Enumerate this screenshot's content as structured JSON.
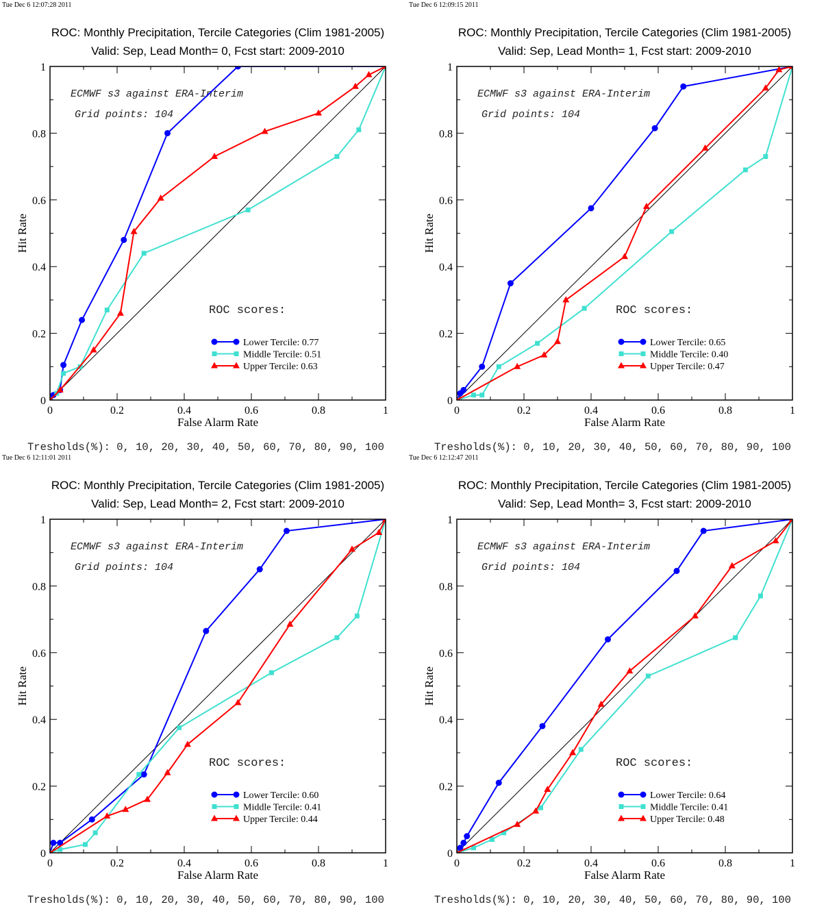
{
  "chart_data": [
    {
      "type": "line",
      "timestamp": "Tue Dec  6 12:07:28 2011",
      "title": "ROC: Monthly Precipitation, Tercile Categories (Clim 1981-2005)",
      "subtitle": "Valid: Sep, Lead Month= 0, Fcst start: 2009-2010",
      "xlabel": "False Alarm Rate",
      "ylabel": "Hit Rate",
      "xlim": [
        0,
        1
      ],
      "ylim": [
        0,
        1
      ],
      "x_ticks": [
        "0",
        "0.2",
        "0.4",
        "0.6",
        "0.8",
        "1"
      ],
      "y_ticks": [
        "0",
        "0.2",
        "0.4",
        "0.6",
        "0.8",
        "1"
      ],
      "annotation_line1": "ECMWF s3 against ERA-Interim",
      "annotation_line2": "Grid points:  104",
      "scores_heading": "ROC scores:",
      "thresholds": "Tresholds(%): 0, 10, 20, 30, 40, 50, 60, 70, 80, 90, 100",
      "series": [
        {
          "name": "Lower Tercile: 0.77",
          "color": "#0000ff",
          "marker": "circle",
          "x": [
            0,
            0.01,
            0.03,
            0.04,
            0.095,
            0.22,
            0.35,
            0.56,
            1
          ],
          "y": [
            0,
            0.015,
            0.03,
            0.105,
            0.24,
            0.48,
            0.8,
            1,
            1
          ]
        },
        {
          "name": "Middle Tercile: 0.51",
          "color": "#40e0d0",
          "marker": "square",
          "x": [
            0,
            0.02,
            0.04,
            0.09,
            0.17,
            0.28,
            0.59,
            0.855,
            0.92,
            1
          ],
          "y": [
            0,
            0.02,
            0.08,
            0.1,
            0.27,
            0.44,
            0.57,
            0.73,
            0.81,
            1
          ]
        },
        {
          "name": "Upper Tercile: 0.63",
          "color": "#ff0000",
          "marker": "triangle",
          "x": [
            0,
            0.03,
            0.13,
            0.21,
            0.25,
            0.33,
            0.49,
            0.64,
            0.8,
            0.91,
            0.95,
            1
          ],
          "y": [
            0,
            0.03,
            0.15,
            0.26,
            0.505,
            0.605,
            0.73,
            0.805,
            0.86,
            0.94,
            0.975,
            1
          ]
        }
      ]
    },
    {
      "type": "line",
      "timestamp": "Tue Dec  6 12:09:15 2011",
      "title": "ROC: Monthly Precipitation, Tercile Categories (Clim 1981-2005)",
      "subtitle": "Valid: Sep, Lead Month= 1, Fcst start: 2009-2010",
      "xlabel": "False Alarm Rate",
      "ylabel": "Hit Rate",
      "xlim": [
        0,
        1
      ],
      "ylim": [
        0,
        1
      ],
      "x_ticks": [
        "0",
        "0.2",
        "0.4",
        "0.6",
        "0.8",
        "1"
      ],
      "y_ticks": [
        "0",
        "0.2",
        "0.4",
        "0.6",
        "0.8",
        "1"
      ],
      "annotation_line1": "ECMWF s3 against ERA-Interim",
      "annotation_line2": "Grid points:  104",
      "scores_heading": "ROC scores:",
      "thresholds": "Tresholds(%): 0, 10, 20, 30, 40, 50, 60, 70, 80, 90, 100",
      "series": [
        {
          "name": "Lower Tercile: 0.65",
          "color": "#0000ff",
          "marker": "circle",
          "x": [
            0,
            0.01,
            0.02,
            0.075,
            0.16,
            0.4,
            0.59,
            0.675,
            1
          ],
          "y": [
            0,
            0.02,
            0.03,
            0.1,
            0.35,
            0.575,
            0.815,
            0.94,
            1
          ]
        },
        {
          "name": "Middle Tercile: 0.40",
          "color": "#40e0d0",
          "marker": "square",
          "x": [
            0,
            0.05,
            0.075,
            0.125,
            0.24,
            0.38,
            0.64,
            0.86,
            0.92,
            1
          ],
          "y": [
            0,
            0.015,
            0.015,
            0.1,
            0.17,
            0.275,
            0.505,
            0.69,
            0.73,
            1
          ]
        },
        {
          "name": "Upper Tercile: 0.47",
          "color": "#ff0000",
          "marker": "triangle",
          "x": [
            0,
            0.18,
            0.26,
            0.3,
            0.325,
            0.5,
            0.565,
            0.74,
            0.92,
            0.96,
            1
          ],
          "y": [
            0,
            0.1,
            0.135,
            0.175,
            0.3,
            0.43,
            0.58,
            0.755,
            0.935,
            0.99,
            1
          ]
        }
      ]
    },
    {
      "type": "line",
      "timestamp": "Tue Dec  6 12:11:01 2011",
      "title": "ROC: Monthly Precipitation, Tercile Categories (Clim 1981-2005)",
      "subtitle": "Valid: Sep, Lead Month= 2, Fcst start: 2009-2010",
      "xlabel": "False Alarm Rate",
      "ylabel": "Hit Rate",
      "xlim": [
        0,
        1
      ],
      "ylim": [
        0,
        1
      ],
      "x_ticks": [
        "0",
        "0.2",
        "0.4",
        "0.6",
        "0.8",
        "1"
      ],
      "y_ticks": [
        "0",
        "0.2",
        "0.4",
        "0.6",
        "0.8",
        "1"
      ],
      "annotation_line1": "ECMWF s3 against ERA-Interim",
      "annotation_line2": "Grid points:  104",
      "scores_heading": "ROC scores:",
      "thresholds": "Tresholds(%): 0, 10, 20, 30, 40, 50, 60, 70, 80, 90, 100",
      "series": [
        {
          "name": "Lower Tercile: 0.60",
          "color": "#0000ff",
          "marker": "circle",
          "x": [
            0,
            0.01,
            0.03,
            0.125,
            0.28,
            0.465,
            0.625,
            0.705,
            1
          ],
          "y": [
            0,
            0.03,
            0.03,
            0.1,
            0.235,
            0.665,
            0.85,
            0.965,
            1
          ]
        },
        {
          "name": "Middle Tercile: 0.41",
          "color": "#40e0d0",
          "marker": "square",
          "x": [
            0,
            0.03,
            0.105,
            0.135,
            0.265,
            0.385,
            0.66,
            0.855,
            0.915,
            1
          ],
          "y": [
            0,
            0.01,
            0.025,
            0.06,
            0.235,
            0.375,
            0.54,
            0.645,
            0.71,
            1
          ]
        },
        {
          "name": "Upper Tercile: 0.44",
          "color": "#ff0000",
          "marker": "triangle",
          "x": [
            0,
            0.17,
            0.225,
            0.29,
            0.35,
            0.41,
            0.56,
            0.715,
            0.9,
            0.98,
            1
          ],
          "y": [
            0,
            0.11,
            0.13,
            0.16,
            0.24,
            0.325,
            0.45,
            0.685,
            0.91,
            0.96,
            1
          ]
        }
      ]
    },
    {
      "type": "line",
      "timestamp": "Tue Dec  6 12:12:47 2011",
      "title": "ROC: Monthly Precipitation, Tercile Categories (Clim 1981-2005)",
      "subtitle": "Valid: Sep, Lead Month= 3, Fcst start: 2009-2010",
      "xlabel": "False Alarm Rate",
      "ylabel": "Hit Rate",
      "xlim": [
        0,
        1
      ],
      "ylim": [
        0,
        1
      ],
      "x_ticks": [
        "0",
        "0.2",
        "0.4",
        "0.6",
        "0.8",
        "1"
      ],
      "y_ticks": [
        "0",
        "0.2",
        "0.4",
        "0.6",
        "0.8",
        "1"
      ],
      "annotation_line1": "ECMWF s3 against ERA-Interim",
      "annotation_line2": "Grid points:  104",
      "scores_heading": "ROC scores:",
      "thresholds": "Tresholds(%): 0, 10, 20, 30, 40, 50, 60, 70, 80, 90, 100",
      "series": [
        {
          "name": "Lower Tercile: 0.64",
          "color": "#0000ff",
          "marker": "circle",
          "x": [
            0,
            0.01,
            0.02,
            0.03,
            0.125,
            0.255,
            0.45,
            0.655,
            0.735,
            1
          ],
          "y": [
            0,
            0.015,
            0.03,
            0.05,
            0.21,
            0.38,
            0.64,
            0.845,
            0.965,
            1
          ]
        },
        {
          "name": "Middle Tercile: 0.41",
          "color": "#40e0d0",
          "marker": "square",
          "x": [
            0,
            0.05,
            0.105,
            0.14,
            0.25,
            0.37,
            0.57,
            0.83,
            0.905,
            1
          ],
          "y": [
            0,
            0.015,
            0.04,
            0.06,
            0.135,
            0.31,
            0.53,
            0.645,
            0.77,
            1
          ]
        },
        {
          "name": "Upper Tercile: 0.48",
          "color": "#ff0000",
          "marker": "triangle",
          "x": [
            0,
            0.18,
            0.235,
            0.27,
            0.345,
            0.43,
            0.515,
            0.71,
            0.82,
            0.95,
            1
          ],
          "y": [
            0,
            0.085,
            0.125,
            0.19,
            0.3,
            0.445,
            0.545,
            0.71,
            0.86,
            0.935,
            1
          ]
        }
      ]
    }
  ]
}
